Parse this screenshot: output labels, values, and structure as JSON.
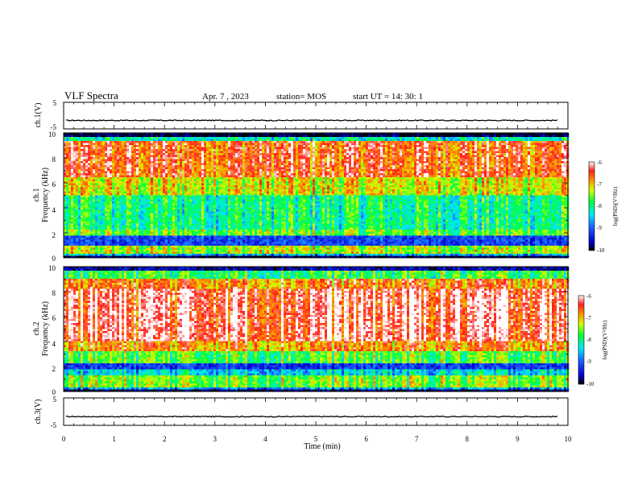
{
  "header": {
    "title": "VLF Spectra",
    "date": "Apr. 7  , 2023",
    "station": "station= MOS",
    "start": "start  UT =   14: 30: 1"
  },
  "chart_data": [
    {
      "type": "line",
      "name": "waveform-ch1",
      "ylabel": "ch.1(V)",
      "ylim": [
        -5,
        5
      ],
      "yticks": [
        "5",
        "-5"
      ],
      "baseline": -1.8,
      "xlim": [
        0,
        10
      ]
    },
    {
      "type": "heatmap",
      "name": "spectrogram-ch1",
      "ylabel_top": "ch.1",
      "ylabel": "Frequency (kHz)",
      "ylim": [
        0,
        10
      ],
      "yticks": [
        "0",
        "2",
        "4",
        "6",
        "8",
        "10"
      ],
      "xlim": [
        0,
        10
      ],
      "colorbar": {
        "label": "log(PSD)(V²/Hz)",
        "range": [
          -10,
          -6
        ],
        "ticks": [
          "-6",
          "-7",
          "-8",
          "-9",
          "-10"
        ]
      }
    },
    {
      "type": "heatmap",
      "name": "spectrogram-ch2",
      "ylabel_top": "ch.2",
      "ylabel": "Frequency (kHz)",
      "ylim": [
        0,
        10
      ],
      "yticks": [
        "0",
        "2",
        "4",
        "6",
        "8",
        "10"
      ],
      "xlim": [
        0,
        10
      ],
      "colorbar": {
        "label": "log(PSD)(V²/Hz)",
        "range": [
          -10,
          -6
        ],
        "ticks": [
          "-6",
          "-7",
          "-8",
          "-9",
          "-10"
        ]
      }
    },
    {
      "type": "line",
      "name": "waveform-ch3",
      "ylabel": "ch.3(V)",
      "ylim": [
        -5,
        5
      ],
      "yticks": [
        "5",
        "-5"
      ],
      "baseline": -1.8,
      "xlim": [
        0,
        10
      ],
      "xlabel": "Time  (min)",
      "xticks": [
        "0",
        "1",
        "2",
        "3",
        "4",
        "5",
        "6",
        "7",
        "8",
        "9",
        "10"
      ]
    }
  ]
}
